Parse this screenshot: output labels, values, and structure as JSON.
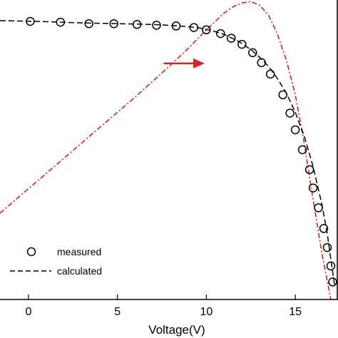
{
  "chart_data": {
    "type": "line",
    "title": "",
    "xlabel": "Voltage(V)",
    "ylabel": "",
    "xlim": [
      -1.6,
      17.4
    ],
    "ylim": [
      0,
      3.92
    ],
    "xticks": [
      0,
      5,
      10,
      15
    ],
    "xtick_labels": [
      "0",
      "5",
      "10",
      "15"
    ],
    "grid": false,
    "legend": {
      "placement": "bottom-left",
      "entries": [
        {
          "label": "measured",
          "marker": "circle"
        },
        {
          "label": "calculated",
          "linestyle": "dashed"
        }
      ]
    },
    "series": [
      {
        "name": "measured",
        "style": "marker",
        "color": "#000000",
        "x": [
          0.1,
          1.8,
          3.4,
          4.8,
          6.1,
          7.2,
          8.3,
          9.3,
          10.0,
          10.8,
          11.4,
          12.0,
          12.6,
          13.1,
          13.6,
          14.3,
          14.7,
          15.0,
          15.4,
          15.8,
          16.0,
          16.3,
          16.6,
          16.8,
          17.0,
          17.1
        ],
        "y": [
          3.64,
          3.63,
          3.61,
          3.61,
          3.6,
          3.59,
          3.58,
          3.56,
          3.53,
          3.48,
          3.42,
          3.34,
          3.23,
          3.1,
          2.95,
          2.68,
          2.44,
          2.22,
          1.96,
          1.7,
          1.46,
          1.2,
          0.93,
          0.68,
          0.44,
          0.23
        ]
      },
      {
        "name": "calculated",
        "style": "dashed",
        "color": "#000000",
        "x": [
          -1.6,
          0.5,
          3,
          5,
          7,
          8.5,
          9.5,
          10.3,
          11,
          11.8,
          12.5,
          13,
          13.5,
          14,
          14.5,
          15,
          15.5,
          16,
          16.5,
          16.8,
          17,
          17.2
        ],
        "y": [
          3.65,
          3.64,
          3.62,
          3.61,
          3.6,
          3.58,
          3.56,
          3.52,
          3.47,
          3.38,
          3.27,
          3.17,
          3.05,
          2.89,
          2.7,
          2.45,
          2.14,
          1.74,
          1.24,
          0.86,
          0.52,
          0.2
        ]
      },
      {
        "name": "",
        "style": "dashdot",
        "color": "#d42020",
        "x": [
          -1.6,
          0,
          2,
          4,
          6,
          8,
          9,
          10,
          10.5,
          11,
          11.5,
          12,
          12.5,
          13,
          13.5,
          14,
          14.5,
          15,
          15.5,
          16,
          16.5,
          17
        ],
        "y": [
          1.13,
          1.45,
          1.85,
          2.25,
          2.65,
          3.07,
          3.29,
          3.53,
          3.64,
          3.75,
          3.83,
          3.88,
          3.9,
          3.85,
          3.72,
          3.47,
          3.13,
          2.68,
          2.05,
          1.31,
          0.6,
          0.0
        ]
      }
    ],
    "annotations": [
      {
        "type": "arrow",
        "color": "#e02020",
        "from": [
          7.6,
          3.09
        ],
        "to": [
          9.9,
          3.09
        ]
      }
    ]
  }
}
